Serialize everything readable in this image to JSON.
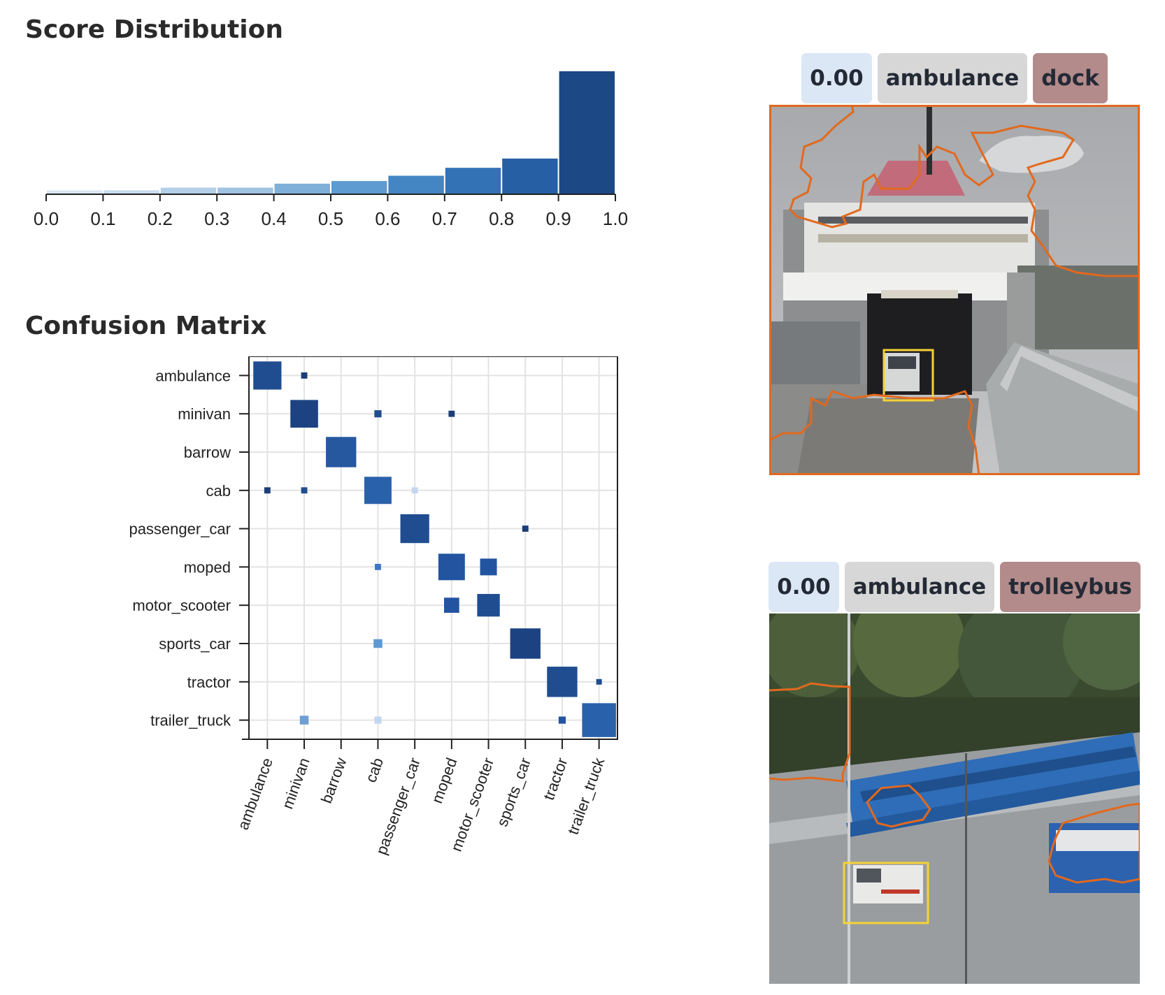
{
  "score_title": "Score Distribution",
  "cm_title": "Confusion Matrix",
  "samples": [
    {
      "score": "0.00",
      "ground_truth": "ambulance",
      "prediction": "dock",
      "prediction_color": "#b38b8b",
      "mask_color": "#e2691d",
      "box_color": "#f4d335"
    },
    {
      "score": "0.00",
      "ground_truth": "ambulance",
      "prediction": "trolleybus",
      "prediction_color": "#b38b8b",
      "mask_color": "#e2691d",
      "box_color": "#f4d335"
    }
  ],
  "chart_data": [
    {
      "type": "bar",
      "title": "Score Distribution",
      "xlim": [
        0.0,
        1.0
      ],
      "x_ticks": [
        "0.0",
        "0.1",
        "0.2",
        "0.3",
        "0.4",
        "0.5",
        "0.6",
        "0.7",
        "0.8",
        "0.9",
        "1.0"
      ],
      "bins": [
        [
          0.0,
          0.1
        ],
        [
          0.1,
          0.2
        ],
        [
          0.2,
          0.3
        ],
        [
          0.3,
          0.4
        ],
        [
          0.4,
          0.5
        ],
        [
          0.5,
          0.6
        ],
        [
          0.6,
          0.7
        ],
        [
          0.7,
          0.8
        ],
        [
          0.8,
          0.9
        ],
        [
          0.9,
          1.0
        ]
      ],
      "values": [
        3,
        3,
        5,
        5,
        8,
        10,
        14,
        20,
        27,
        93
      ],
      "colors": [
        "#dbe6f3",
        "#c9dbee",
        "#b4cfe8",
        "#a0c3e2",
        "#7fb0d9",
        "#5e9bd0",
        "#4485c3",
        "#3272b5",
        "#275fa4",
        "#1c4886"
      ],
      "grid": false
    },
    {
      "type": "heatmap",
      "title": "Confusion Matrix",
      "rows": [
        "ambulance",
        "minivan",
        "barrow",
        "cab",
        "passenger_car",
        "moped",
        "motor_scooter",
        "sports_car",
        "tractor",
        "trailer_truck"
      ],
      "columns": [
        "ambulance",
        "minivan",
        "barrow",
        "cab",
        "passenger_car",
        "moped",
        "motor_scooter",
        "sports_car",
        "tractor",
        "trailer_truck"
      ],
      "grid": true,
      "cells": [
        {
          "row": "ambulance",
          "col": "ambulance",
          "value": 0.62,
          "color": "#1f4d8f"
        },
        {
          "row": "ambulance",
          "col": "minivan",
          "value": 0.03,
          "color": "#1c3d75"
        },
        {
          "row": "minivan",
          "col": "minivan",
          "value": 0.6,
          "color": "#1c4282"
        },
        {
          "row": "minivan",
          "col": "cab",
          "value": 0.04,
          "color": "#1f4d8f"
        },
        {
          "row": "minivan",
          "col": "moped",
          "value": 0.03,
          "color": "#1c3d75"
        },
        {
          "row": "barrow",
          "col": "barrow",
          "value": 0.72,
          "color": "#2658a0"
        },
        {
          "row": "cab",
          "col": "ambulance",
          "value": 0.03,
          "color": "#1c3d75"
        },
        {
          "row": "cab",
          "col": "minivan",
          "value": 0.03,
          "color": "#1f4d8f"
        },
        {
          "row": "cab",
          "col": "cab",
          "value": 0.58,
          "color": "#2a61ab"
        },
        {
          "row": "cab",
          "col": "passenger_car",
          "value": 0.03,
          "color": "#c3d7ee"
        },
        {
          "row": "passenger_car",
          "col": "passenger_car",
          "value": 0.65,
          "color": "#1f4d8f"
        },
        {
          "row": "passenger_car",
          "col": "sports_car",
          "value": 0.03,
          "color": "#1c3d75"
        },
        {
          "row": "moped",
          "col": "cab",
          "value": 0.03,
          "color": "#3c78c2"
        },
        {
          "row": "moped",
          "col": "moped",
          "value": 0.55,
          "color": "#2254a0"
        },
        {
          "row": "moped",
          "col": "motor_scooter",
          "value": 0.22,
          "color": "#2254a0"
        },
        {
          "row": "motor_scooter",
          "col": "moped",
          "value": 0.18,
          "color": "#2254a0"
        },
        {
          "row": "motor_scooter",
          "col": "motor_scooter",
          "value": 0.4,
          "color": "#1f4d8f"
        },
        {
          "row": "sports_car",
          "col": "cab",
          "value": 0.06,
          "color": "#5d9ad3"
        },
        {
          "row": "sports_car",
          "col": "sports_car",
          "value": 0.72,
          "color": "#1c4282"
        },
        {
          "row": "tractor",
          "col": "tractor",
          "value": 0.72,
          "color": "#1f4d8f"
        },
        {
          "row": "tractor",
          "col": "trailer_truck",
          "value": 0.0,
          "color": "#1f4d8f"
        },
        {
          "row": "trailer_truck",
          "col": "minivan",
          "value": 0.06,
          "color": "#6d9fd2"
        },
        {
          "row": "trailer_truck",
          "col": "cab",
          "value": 0.04,
          "color": "#c3d7ee"
        },
        {
          "row": "trailer_truck",
          "col": "tractor",
          "value": 0.04,
          "color": "#2254a0"
        },
        {
          "row": "trailer_truck",
          "col": "trailer_truck",
          "value": 0.9,
          "color": "#2a61ab"
        }
      ]
    }
  ]
}
